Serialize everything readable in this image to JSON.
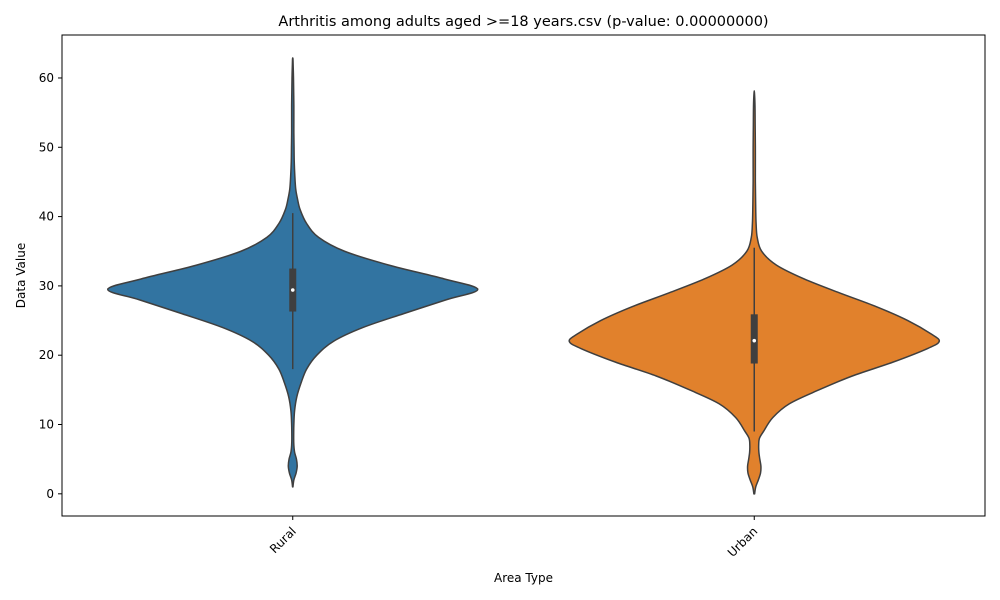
{
  "chart_data": {
    "type": "violin",
    "title": "Arthritis among adults aged >=18 years.csv (p-value: 0.00000000)",
    "xlabel": "Area Type",
    "ylabel": "Data Value",
    "ylim": [
      -3.2,
      66.2
    ],
    "yticks": [
      0,
      10,
      20,
      30,
      40,
      50,
      60
    ],
    "categories": [
      "Rural",
      "Urban"
    ],
    "grid": false,
    "legend": "none",
    "series": [
      {
        "category": "Rural",
        "color": "#3274a1",
        "quartiles": {
          "q1": 26.3,
          "median": 29.4,
          "q3": 32.5
        },
        "whiskers": [
          18.0,
          40.5
        ],
        "extent": [
          1.0,
          62.8
        ],
        "density": [
          [
            1.0,
            0.001
          ],
          [
            2.0,
            0.006
          ],
          [
            3.0,
            0.018
          ],
          [
            4.0,
            0.024
          ],
          [
            5.0,
            0.02
          ],
          [
            6.0,
            0.01
          ],
          [
            7.0,
            0.006
          ],
          [
            8.0,
            0.005
          ],
          [
            10.0,
            0.006
          ],
          [
            12.0,
            0.01
          ],
          [
            14.0,
            0.022
          ],
          [
            16.0,
            0.045
          ],
          [
            18.0,
            0.075
          ],
          [
            20.0,
            0.13
          ],
          [
            22.0,
            0.22
          ],
          [
            24.0,
            0.38
          ],
          [
            26.0,
            0.6
          ],
          [
            28.0,
            0.83
          ],
          [
            29.5,
            1.0
          ],
          [
            31.0,
            0.82
          ],
          [
            33.0,
            0.52
          ],
          [
            35.0,
            0.28
          ],
          [
            37.0,
            0.14
          ],
          [
            39.0,
            0.075
          ],
          [
            41.0,
            0.04
          ],
          [
            42.5,
            0.026
          ],
          [
            44.0,
            0.016
          ],
          [
            46.0,
            0.011
          ],
          [
            48.0,
            0.008
          ],
          [
            50.0,
            0.007
          ],
          [
            52.0,
            0.006
          ],
          [
            54.0,
            0.006
          ],
          [
            56.0,
            0.006
          ],
          [
            58.0,
            0.005
          ],
          [
            60.0,
            0.004
          ],
          [
            62.0,
            0.002
          ],
          [
            62.8,
            0.001
          ]
        ]
      },
      {
        "category": "Urban",
        "color": "#e1812c",
        "quartiles": {
          "q1": 18.8,
          "median": 22.1,
          "q3": 25.9
        },
        "whiskers": [
          9.0,
          35.5
        ],
        "extent": [
          0.0,
          57.9
        ],
        "density": [
          [
            0.0,
            0.002
          ],
          [
            1.0,
            0.008
          ],
          [
            2.0,
            0.022
          ],
          [
            3.0,
            0.034
          ],
          [
            4.0,
            0.036
          ],
          [
            5.0,
            0.03
          ],
          [
            6.0,
            0.025
          ],
          [
            7.0,
            0.024
          ],
          [
            8.0,
            0.028
          ],
          [
            9.0,
            0.05
          ],
          [
            11.0,
            0.1
          ],
          [
            13.0,
            0.19
          ],
          [
            15.0,
            0.35
          ],
          [
            17.0,
            0.53
          ],
          [
            19.0,
            0.75
          ],
          [
            21.0,
            0.94
          ],
          [
            22.0,
            1.0
          ],
          [
            23.0,
            0.96
          ],
          [
            25.0,
            0.83
          ],
          [
            27.0,
            0.66
          ],
          [
            29.0,
            0.46
          ],
          [
            31.0,
            0.27
          ],
          [
            33.0,
            0.12
          ],
          [
            35.0,
            0.04
          ],
          [
            37.0,
            0.016
          ],
          [
            39.0,
            0.01
          ],
          [
            41.0,
            0.008
          ],
          [
            43.0,
            0.007
          ],
          [
            45.0,
            0.006
          ],
          [
            47.0,
            0.006
          ],
          [
            50.0,
            0.006
          ],
          [
            53.0,
            0.005
          ],
          [
            56.0,
            0.004
          ],
          [
            57.9,
            0.001
          ]
        ]
      }
    ]
  }
}
